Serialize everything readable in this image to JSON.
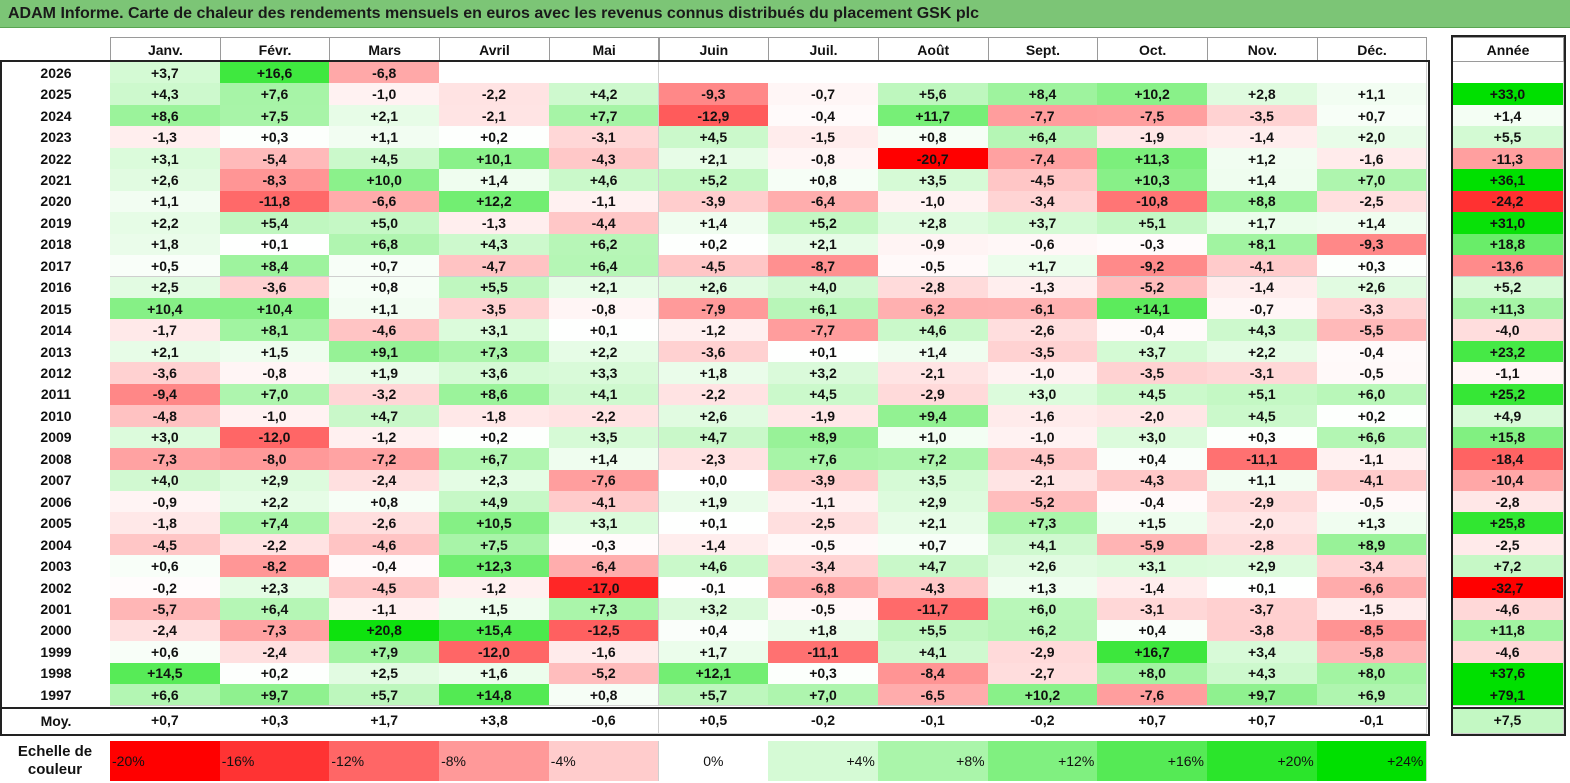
{
  "title": "ADAM Informe. Carte de chaleur des rendements mensuels en euros avec les revenus connus distribués du placement GSK plc",
  "chart_data": {
    "type": "heatmap",
    "title": "ADAM Informe. Carte de chaleur des rendements mensuels en euros avec les revenus connus distribués du placement GSK plc",
    "columns": [
      "Janv.",
      "Févr.",
      "Mars",
      "Avril",
      "Mai",
      "Juin",
      "Juil.",
      "Août",
      "Sept.",
      "Oct.",
      "Nov.",
      "Déc."
    ],
    "annual_column": "Année",
    "rows": [
      {
        "year": "2026",
        "months": [
          "+3,7",
          "+16,6",
          "-6,8",
          "",
          "",
          "",
          "",
          "",
          "",
          "",
          "",
          ""
        ],
        "annual": ""
      },
      {
        "year": "2025",
        "months": [
          "+4,3",
          "+7,6",
          "-1,0",
          "-2,2",
          "+4,2",
          "-9,3",
          "-0,7",
          "+5,6",
          "+8,4",
          "+10,2",
          "+2,8",
          "+1,1"
        ],
        "annual": "+33,0"
      },
      {
        "year": "2024",
        "months": [
          "+8,6",
          "+7,5",
          "+2,1",
          "-2,1",
          "+7,7",
          "-12,9",
          "-0,4",
          "+11,7",
          "-7,7",
          "-7,5",
          "-3,5",
          "+0,7"
        ],
        "annual": "+1,4"
      },
      {
        "year": "2023",
        "months": [
          "-1,3",
          "+0,3",
          "+1,1",
          "+0,2",
          "-3,1",
          "+4,5",
          "-1,5",
          "+0,8",
          "+6,4",
          "-1,9",
          "-1,4",
          "+2,0"
        ],
        "annual": "+5,5"
      },
      {
        "year": "2022",
        "months": [
          "+3,1",
          "-5,4",
          "+4,5",
          "+10,1",
          "-4,3",
          "+2,1",
          "-0,8",
          "-20,7",
          "-7,4",
          "+11,3",
          "+1,2",
          "-1,6"
        ],
        "annual": "-11,3"
      },
      {
        "year": "2021",
        "months": [
          "+2,6",
          "-8,3",
          "+10,0",
          "+1,4",
          "+4,6",
          "+5,2",
          "+0,8",
          "+3,5",
          "-4,5",
          "+10,3",
          "+1,4",
          "+7,0"
        ],
        "annual": "+36,1"
      },
      {
        "year": "2020",
        "months": [
          "+1,1",
          "-11,8",
          "-6,6",
          "+12,2",
          "-1,1",
          "-3,9",
          "-6,4",
          "-1,0",
          "-3,4",
          "-10,8",
          "+8,8",
          "-2,5"
        ],
        "annual": "-24,2"
      },
      {
        "year": "2019",
        "months": [
          "+2,2",
          "+5,4",
          "+5,0",
          "-1,3",
          "-4,4",
          "+1,4",
          "+5,2",
          "+2,8",
          "+3,7",
          "+5,1",
          "+1,7",
          "+1,4"
        ],
        "annual": "+31,0"
      },
      {
        "year": "2018",
        "months": [
          "+1,8",
          "+0,1",
          "+6,8",
          "+4,3",
          "+6,2",
          "+0,2",
          "+2,1",
          "-0,9",
          "-0,6",
          "-0,3",
          "+8,1",
          "-9,3"
        ],
        "annual": "+18,8"
      },
      {
        "year": "2017",
        "months": [
          "+0,5",
          "+8,4",
          "+0,7",
          "-4,7",
          "+6,4",
          "-4,5",
          "-8,7",
          "-0,5",
          "+1,7",
          "-9,2",
          "-4,1",
          "+0,3"
        ],
        "annual": "-13,6"
      },
      {
        "year": "2016",
        "months": [
          "+2,5",
          "-3,6",
          "+0,8",
          "+5,5",
          "+2,1",
          "+2,6",
          "+4,0",
          "-2,8",
          "-1,3",
          "-5,2",
          "-1,4",
          "+2,6"
        ],
        "annual": "+5,2"
      },
      {
        "year": "2015",
        "months": [
          "+10,4",
          "+10,4",
          "+1,1",
          "-3,5",
          "-0,8",
          "-7,9",
          "+6,1",
          "-6,2",
          "-6,1",
          "+14,1",
          "-0,7",
          "-3,3"
        ],
        "annual": "+11,3"
      },
      {
        "year": "2014",
        "months": [
          "-1,7",
          "+8,1",
          "-4,6",
          "+3,1",
          "+0,1",
          "-1,2",
          "-7,7",
          "+4,6",
          "-2,6",
          "-0,4",
          "+4,3",
          "-5,5"
        ],
        "annual": "-4,0"
      },
      {
        "year": "2013",
        "months": [
          "+2,1",
          "+1,5",
          "+9,1",
          "+7,3",
          "+2,2",
          "-3,6",
          "+0,1",
          "+1,4",
          "-3,5",
          "+3,7",
          "+2,2",
          "-0,4"
        ],
        "annual": "+23,2"
      },
      {
        "year": "2012",
        "months": [
          "-3,6",
          "-0,8",
          "+1,9",
          "+3,6",
          "+3,3",
          "+1,8",
          "+3,2",
          "-2,1",
          "-1,0",
          "-3,5",
          "-3,1",
          "-0,5"
        ],
        "annual": "-1,1"
      },
      {
        "year": "2011",
        "months": [
          "-9,4",
          "+7,0",
          "-3,2",
          "+8,6",
          "+4,1",
          "-2,2",
          "+4,5",
          "-2,9",
          "+3,0",
          "+4,5",
          "+5,1",
          "+6,0"
        ],
        "annual": "+25,2"
      },
      {
        "year": "2010",
        "months": [
          "-4,8",
          "-1,0",
          "+4,7",
          "-1,8",
          "-2,2",
          "+2,6",
          "-1,9",
          "+9,4",
          "-1,6",
          "-2,0",
          "+4,5",
          "+0,2"
        ],
        "annual": "+4,9"
      },
      {
        "year": "2009",
        "months": [
          "+3,0",
          "-12,0",
          "-1,2",
          "+0,2",
          "+3,5",
          "+4,7",
          "+8,9",
          "+1,0",
          "-1,0",
          "+3,0",
          "+0,3",
          "+6,6"
        ],
        "annual": "+15,8"
      },
      {
        "year": "2008",
        "months": [
          "-7,3",
          "-8,0",
          "-7,2",
          "+6,7",
          "+1,4",
          "-2,3",
          "+7,6",
          "+7,2",
          "-4,5",
          "+0,4",
          "-11,1",
          "-1,1"
        ],
        "annual": "-18,4"
      },
      {
        "year": "2007",
        "months": [
          "+4,0",
          "+2,9",
          "-2,4",
          "+2,3",
          "-7,6",
          "+0,0",
          "-3,9",
          "+3,5",
          "-2,1",
          "-4,3",
          "+1,1",
          "-4,1"
        ],
        "annual": "-10,4"
      },
      {
        "year": "2006",
        "months": [
          "-0,9",
          "+2,2",
          "+0,8",
          "+4,9",
          "-4,1",
          "+1,9",
          "-1,1",
          "+2,9",
          "-5,2",
          "-0,4",
          "-2,9",
          "-0,5"
        ],
        "annual": "-2,8"
      },
      {
        "year": "2005",
        "months": [
          "-1,8",
          "+7,4",
          "-2,6",
          "+10,5",
          "+3,1",
          "+0,1",
          "-2,5",
          "+2,1",
          "+7,3",
          "+1,5",
          "-2,0",
          "+1,3"
        ],
        "annual": "+25,8"
      },
      {
        "year": "2004",
        "months": [
          "-4,5",
          "-2,2",
          "-4,6",
          "+7,5",
          "-0,3",
          "-1,4",
          "-0,5",
          "+0,7",
          "+4,1",
          "-5,9",
          "-2,8",
          "+8,9"
        ],
        "annual": "-2,5"
      },
      {
        "year": "2003",
        "months": [
          "+0,6",
          "-8,2",
          "-0,4",
          "+12,3",
          "-6,4",
          "+4,6",
          "-3,4",
          "+4,7",
          "+2,6",
          "+3,1",
          "+2,9",
          "-3,4"
        ],
        "annual": "+7,2"
      },
      {
        "year": "2002",
        "months": [
          "-0,2",
          "+2,3",
          "-4,5",
          "-1,2",
          "-17,0",
          "-0,1",
          "-6,8",
          "-4,3",
          "+1,3",
          "-1,4",
          "+0,1",
          "-6,6"
        ],
        "annual": "-32,7"
      },
      {
        "year": "2001",
        "months": [
          "-5,7",
          "+6,4",
          "-1,1",
          "+1,5",
          "+7,3",
          "+3,2",
          "-0,5",
          "-11,7",
          "+6,0",
          "-3,1",
          "-3,7",
          "-1,5"
        ],
        "annual": "-4,6"
      },
      {
        "year": "2000",
        "months": [
          "-2,4",
          "-7,3",
          "+20,8",
          "+15,4",
          "-12,5",
          "+0,4",
          "+1,8",
          "+5,5",
          "+6,2",
          "+0,4",
          "-3,8",
          "-8,5"
        ],
        "annual": "+11,8"
      },
      {
        "year": "1999",
        "months": [
          "+0,6",
          "-2,4",
          "+7,9",
          "-12,0",
          "-1,6",
          "+1,7",
          "-11,1",
          "+4,1",
          "-2,9",
          "+16,7",
          "+3,4",
          "-5,8"
        ],
        "annual": "-4,6"
      },
      {
        "year": "1998",
        "months": [
          "+14,5",
          "+0,2",
          "+2,5",
          "+1,6",
          "-5,2",
          "+12,1",
          "+0,3",
          "-8,4",
          "-2,7",
          "+8,0",
          "+4,3",
          "+8,0"
        ],
        "annual": "+37,6"
      },
      {
        "year": "1997",
        "months": [
          "+6,6",
          "+9,7",
          "+5,7",
          "+14,8",
          "+0,8",
          "+5,7",
          "+7,0",
          "-6,5",
          "+10,2",
          "-7,6",
          "+9,7",
          "+6,9"
        ],
        "annual": "+79,1"
      }
    ],
    "average": {
      "label": "Moy.",
      "months": [
        "+0,7",
        "+0,3",
        "+1,7",
        "+3,8",
        "-0,6",
        "+0,5",
        "-0,2",
        "-0,1",
        "-0,2",
        "+0,7",
        "+0,7",
        "-0,1"
      ],
      "annual": "+7,5"
    },
    "color_scale": {
      "label": "Echelle de couleur",
      "steps": [
        "-20%",
        "-16%",
        "-12%",
        "-8%",
        "-4%",
        "0%",
        "+4%",
        "+8%",
        "+12%",
        "+16%",
        "+20%",
        "+24%"
      ],
      "negative_color": "#ff0000",
      "neutral_color": "#ffffff",
      "positive_color": "#00e000"
    }
  }
}
